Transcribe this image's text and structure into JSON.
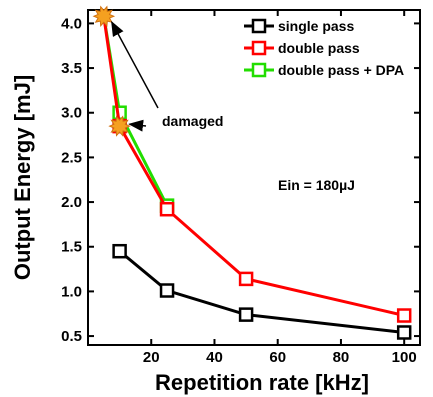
{
  "chart_data": {
    "type": "line",
    "xlabel": "Repetition rate  [kHz]",
    "ylabel": "Output Energy  [mJ]",
    "xlim": [
      0,
      105
    ],
    "ylim": [
      0.4,
      4.15
    ],
    "xticks": [
      20,
      40,
      60,
      80,
      100
    ],
    "yticks": [
      0.5,
      1.0,
      1.5,
      2.0,
      2.5,
      3.0,
      3.5,
      4.0
    ],
    "yticks_labels": [
      "0.5",
      "1.0",
      "1.5",
      "2.0",
      "2.5",
      "3.0",
      "3.5",
      "4.0"
    ],
    "legend_position": "top-right",
    "series": [
      {
        "name": "single pass",
        "color": "#000000",
        "x": [
          10,
          25,
          50,
          100
        ],
        "y": [
          1.45,
          1.01,
          0.74,
          0.54
        ]
      },
      {
        "name": "double pass",
        "color": "#ff0000",
        "x": [
          5,
          10,
          25,
          50,
          100
        ],
        "y": [
          4.08,
          2.85,
          1.92,
          1.14,
          0.73
        ]
      },
      {
        "name": "double pass + DPA",
        "color": "#22dd00",
        "x": [
          5,
          10,
          25
        ],
        "y": [
          4.08,
          3.0,
          1.96
        ]
      }
    ],
    "damaged_points": [
      {
        "x": 5,
        "y": 4.08
      },
      {
        "x": 10,
        "y": 2.85
      }
    ],
    "annotations": {
      "damaged_label": "damaged",
      "ein_label": "Ein = 180µJ"
    },
    "colors": {
      "damaged_marker": "#f5a020"
    }
  }
}
